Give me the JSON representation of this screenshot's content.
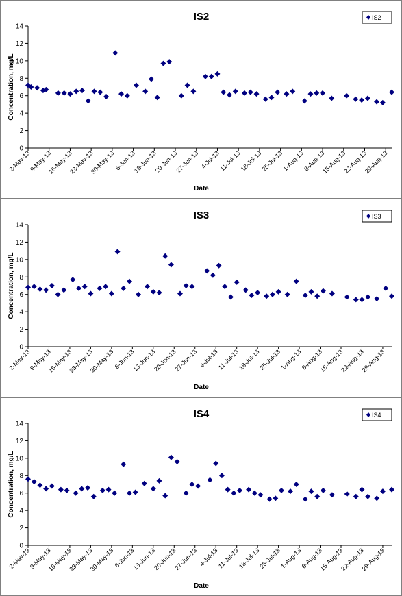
{
  "chart_data": [
    {
      "type": "scatter",
      "title": "IS2",
      "xlabel": "Date",
      "ylabel": "Concentration, mg/L",
      "ylim": [
        0,
        14
      ],
      "yticks": [
        "0",
        "2",
        "4",
        "6",
        "8",
        "10",
        "12",
        "14"
      ],
      "xticks": [
        "2-May-13",
        "9-May-13",
        "16-May-13",
        "23-May-13",
        "30-May-13",
        "6-Jun-13",
        "13-Jun-13",
        "20-Jun-13",
        "27-Jun-13",
        "4-Jul-13",
        "11-Jul-13",
        "18-Jul-13",
        "25-Jul-13",
        "1-Aug-13",
        "8-Aug-13",
        "15-Aug-13",
        "22-Aug-13",
        "29-Aug-13"
      ],
      "legend_position": "top-right",
      "grid": false,
      "series": [
        {
          "name": "IS2",
          "color": "#000080",
          "marker": "diamond",
          "points": [
            [
              "2-May-13",
              7.2
            ],
            [
              "3-May-13",
              7.0
            ],
            [
              "5-May-13",
              6.9
            ],
            [
              "7-May-13",
              6.6
            ],
            [
              "8-May-13",
              6.7
            ],
            [
              "12-May-13",
              6.3
            ],
            [
              "14-May-13",
              6.3
            ],
            [
              "16-May-13",
              6.2
            ],
            [
              "18-May-13",
              6.5
            ],
            [
              "20-May-13",
              6.6
            ],
            [
              "22-May-13",
              5.4
            ],
            [
              "24-May-13",
              6.5
            ],
            [
              "26-May-13",
              6.4
            ],
            [
              "28-May-13",
              5.9
            ],
            [
              "31-May-13",
              10.9
            ],
            [
              "2-Jun-13",
              6.2
            ],
            [
              "4-Jun-13",
              6.0
            ],
            [
              "7-Jun-13",
              7.2
            ],
            [
              "10-Jun-13",
              6.5
            ],
            [
              "12-Jun-13",
              7.9
            ],
            [
              "14-Jun-13",
              5.8
            ],
            [
              "16-Jun-13",
              9.7
            ],
            [
              "18-Jun-13",
              9.9
            ],
            [
              "22-Jun-13",
              6.0
            ],
            [
              "24-Jun-13",
              7.2
            ],
            [
              "26-Jun-13",
              6.5
            ],
            [
              "30-Jun-13",
              8.2
            ],
            [
              "2-Jul-13",
              8.2
            ],
            [
              "4-Jul-13",
              8.5
            ],
            [
              "6-Jul-13",
              6.4
            ],
            [
              "8-Jul-13",
              6.1
            ],
            [
              "10-Jul-13",
              6.5
            ],
            [
              "13-Jul-13",
              6.3
            ],
            [
              "15-Jul-13",
              6.4
            ],
            [
              "17-Jul-13",
              6.2
            ],
            [
              "20-Jul-13",
              5.6
            ],
            [
              "22-Jul-13",
              5.8
            ],
            [
              "24-Jul-13",
              6.4
            ],
            [
              "27-Jul-13",
              6.2
            ],
            [
              "29-Jul-13",
              6.5
            ],
            [
              "2-Aug-13",
              5.4
            ],
            [
              "4-Aug-13",
              6.2
            ],
            [
              "6-Aug-13",
              6.3
            ],
            [
              "8-Aug-13",
              6.3
            ],
            [
              "11-Aug-13",
              5.7
            ],
            [
              "16-Aug-13",
              6.0
            ],
            [
              "19-Aug-13",
              5.6
            ],
            [
              "21-Aug-13",
              5.5
            ],
            [
              "23-Aug-13",
              5.7
            ],
            [
              "26-Aug-13",
              5.3
            ],
            [
              "28-Aug-13",
              5.2
            ],
            [
              "31-Aug-13",
              6.4
            ]
          ]
        }
      ]
    },
    {
      "type": "scatter",
      "title": "IS3",
      "xlabel": "Date",
      "ylabel": "Concentration, mg/L",
      "ylim": [
        0,
        14
      ],
      "yticks": [
        "0",
        "2",
        "4",
        "6",
        "8",
        "10",
        "12",
        "14"
      ],
      "xticks": [
        "2-May-13",
        "9-May-13",
        "16-May-13",
        "23-May-13",
        "30-May-13",
        "6-Jun-13",
        "13-Jun-13",
        "20-Jun-13",
        "27-Jun-13",
        "4-Jul-13",
        "11-Jul-13",
        "18-Jul-13",
        "25-Jul-13",
        "1-Aug-13",
        "8-Aug-13",
        "15-Aug-13",
        "22-Aug-13",
        "29-Aug-13"
      ],
      "legend_position": "top-right",
      "grid": false,
      "series": [
        {
          "name": "IS3",
          "color": "#000080",
          "marker": "diamond",
          "points": [
            [
              "2-May-13",
              6.8
            ],
            [
              "4-May-13",
              6.9
            ],
            [
              "6-May-13",
              6.6
            ],
            [
              "8-May-13",
              6.5
            ],
            [
              "10-May-13",
              7.0
            ],
            [
              "12-May-13",
              6.0
            ],
            [
              "14-May-13",
              6.5
            ],
            [
              "17-May-13",
              7.7
            ],
            [
              "19-May-13",
              6.7
            ],
            [
              "21-May-13",
              6.9
            ],
            [
              "23-May-13",
              6.1
            ],
            [
              "26-May-13",
              6.7
            ],
            [
              "28-May-13",
              6.9
            ],
            [
              "30-May-13",
              6.1
            ],
            [
              "1-Jun-13",
              10.9
            ],
            [
              "3-Jun-13",
              6.7
            ],
            [
              "5-Jun-13",
              7.5
            ],
            [
              "8-Jun-13",
              6.0
            ],
            [
              "11-Jun-13",
              6.9
            ],
            [
              "13-Jun-13",
              6.3
            ],
            [
              "15-Jun-13",
              6.2
            ],
            [
              "17-Jun-13",
              10.4
            ],
            [
              "19-Jun-13",
              9.4
            ],
            [
              "22-Jun-13",
              6.1
            ],
            [
              "24-Jun-13",
              7.0
            ],
            [
              "26-Jun-13",
              6.9
            ],
            [
              "1-Jul-13",
              8.7
            ],
            [
              "3-Jul-13",
              8.2
            ],
            [
              "5-Jul-13",
              9.3
            ],
            [
              "7-Jul-13",
              6.9
            ],
            [
              "9-Jul-13",
              5.7
            ],
            [
              "11-Jul-13",
              7.4
            ],
            [
              "14-Jul-13",
              6.5
            ],
            [
              "16-Jul-13",
              5.9
            ],
            [
              "18-Jul-13",
              6.2
            ],
            [
              "21-Jul-13",
              5.8
            ],
            [
              "23-Jul-13",
              6.0
            ],
            [
              "25-Jul-13",
              6.3
            ],
            [
              "28-Jul-13",
              6.0
            ],
            [
              "31-Jul-13",
              7.5
            ],
            [
              "3-Aug-13",
              5.9
            ],
            [
              "5-Aug-13",
              6.3
            ],
            [
              "7-Aug-13",
              5.8
            ],
            [
              "9-Aug-13",
              6.4
            ],
            [
              "12-Aug-13",
              6.1
            ],
            [
              "17-Aug-13",
              5.7
            ],
            [
              "20-Aug-13",
              5.4
            ],
            [
              "22-Aug-13",
              5.4
            ],
            [
              "24-Aug-13",
              5.7
            ],
            [
              "27-Aug-13",
              5.5
            ],
            [
              "30-Aug-13",
              6.7
            ],
            [
              "1-Sep-13",
              5.8
            ]
          ]
        }
      ]
    },
    {
      "type": "scatter",
      "title": "IS4",
      "xlabel": "Date",
      "ylabel": "Concentration, mg/L",
      "ylim": [
        0,
        14
      ],
      "yticks": [
        "0",
        "2",
        "4",
        "6",
        "8",
        "10",
        "12",
        "14"
      ],
      "xticks": [
        "2-May-13",
        "9-May-13",
        "16-May-13",
        "23-May-13",
        "30-May-13",
        "6-Jun-13",
        "13-Jun-13",
        "20-Jun-13",
        "27-Jun-13",
        "4-Jul-13",
        "11-Jul-13",
        "18-Jul-13",
        "25-Jul-13",
        "1-Aug-13",
        "8-Aug-13",
        "15-Aug-13",
        "22-Aug-13",
        "29-Aug-13"
      ],
      "legend_position": "top-right",
      "grid": false,
      "series": [
        {
          "name": "IS4",
          "color": "#000080",
          "marker": "diamond",
          "points": [
            [
              "2-May-13",
              7.6
            ],
            [
              "4-May-13",
              7.3
            ],
            [
              "6-May-13",
              6.9
            ],
            [
              "8-May-13",
              6.5
            ],
            [
              "10-May-13",
              6.8
            ],
            [
              "13-May-13",
              6.4
            ],
            [
              "15-May-13",
              6.3
            ],
            [
              "18-May-13",
              6.0
            ],
            [
              "20-May-13",
              6.5
            ],
            [
              "22-May-13",
              6.6
            ],
            [
              "24-May-13",
              5.6
            ],
            [
              "27-May-13",
              6.3
            ],
            [
              "29-May-13",
              6.4
            ],
            [
              "31-May-13",
              6.0
            ],
            [
              "3-Jun-13",
              9.3
            ],
            [
              "5-Jun-13",
              6.0
            ],
            [
              "7-Jun-13",
              6.1
            ],
            [
              "10-Jun-13",
              7.1
            ],
            [
              "13-Jun-13",
              6.5
            ],
            [
              "15-Jun-13",
              7.4
            ],
            [
              "17-Jun-13",
              5.7
            ],
            [
              "19-Jun-13",
              10.1
            ],
            [
              "21-Jun-13",
              9.6
            ],
            [
              "24-Jun-13",
              6.0
            ],
            [
              "26-Jun-13",
              7.0
            ],
            [
              "28-Jun-13",
              6.8
            ],
            [
              "2-Jul-13",
              7.5
            ],
            [
              "4-Jul-13",
              9.4
            ],
            [
              "6-Jul-13",
              8.0
            ],
            [
              "8-Jul-13",
              6.4
            ],
            [
              "10-Jul-13",
              6.0
            ],
            [
              "12-Jul-13",
              6.3
            ],
            [
              "15-Jul-13",
              6.4
            ],
            [
              "17-Jul-13",
              6.0
            ],
            [
              "19-Jul-13",
              5.8
            ],
            [
              "22-Jul-13",
              5.3
            ],
            [
              "24-Jul-13",
              5.4
            ],
            [
              "26-Jul-13",
              6.3
            ],
            [
              "29-Jul-13",
              6.2
            ],
            [
              "31-Jul-13",
              7.0
            ],
            [
              "3-Aug-13",
              5.3
            ],
            [
              "5-Aug-13",
              6.2
            ],
            [
              "7-Aug-13",
              5.6
            ],
            [
              "9-Aug-13",
              6.3
            ],
            [
              "12-Aug-13",
              5.8
            ],
            [
              "17-Aug-13",
              5.9
            ],
            [
              "20-Aug-13",
              5.6
            ],
            [
              "22-Aug-13",
              6.4
            ],
            [
              "24-Aug-13",
              5.6
            ],
            [
              "27-Aug-13",
              5.4
            ],
            [
              "29-Aug-13",
              6.2
            ],
            [
              "1-Sep-13",
              6.4
            ]
          ]
        }
      ]
    }
  ]
}
